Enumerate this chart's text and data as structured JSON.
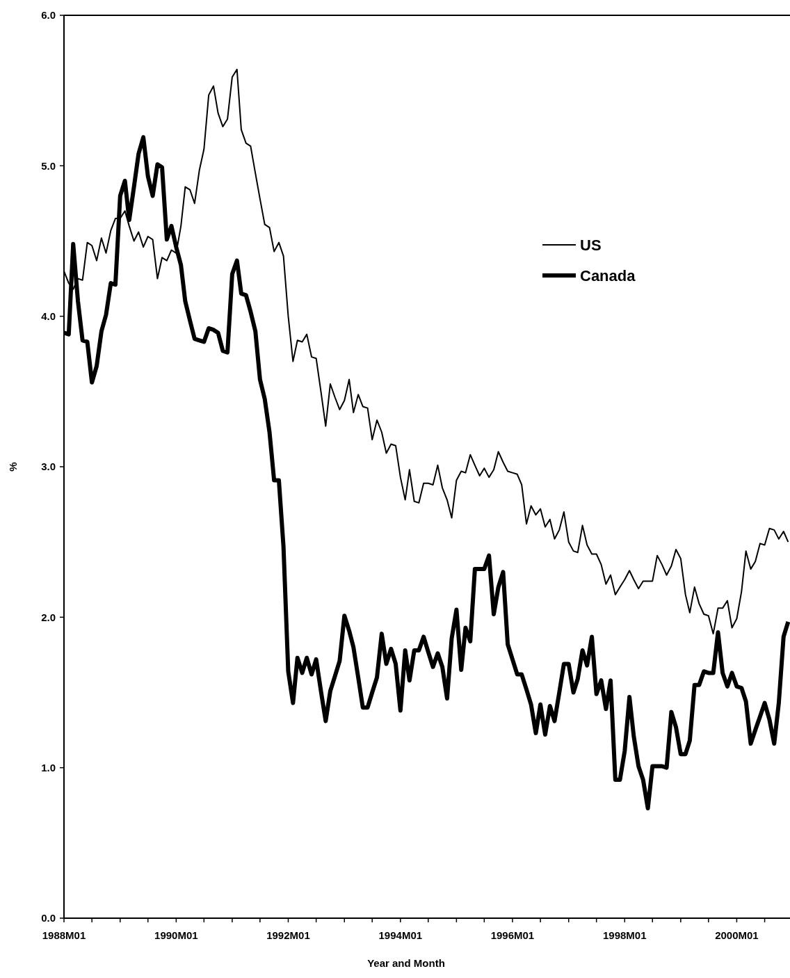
{
  "chart_data": {
    "type": "line",
    "xlabel": "Year and Month",
    "ylabel": "%",
    "x": [
      "1988-01",
      "1988-02",
      "1988-03",
      "1988-04",
      "1988-05",
      "1988-06",
      "1988-07",
      "1988-08",
      "1988-09",
      "1988-10",
      "1988-11",
      "1988-12",
      "1989-01",
      "1989-02",
      "1989-03",
      "1989-04",
      "1989-05",
      "1989-06",
      "1989-07",
      "1989-08",
      "1989-09",
      "1989-10",
      "1989-11",
      "1989-12",
      "1990-01",
      "1990-02",
      "1990-03",
      "1990-04",
      "1990-05",
      "1990-06",
      "1990-07",
      "1990-08",
      "1990-09",
      "1990-10",
      "1990-11",
      "1990-12",
      "1991-01",
      "1991-02",
      "1991-03",
      "1991-04",
      "1991-05",
      "1991-06",
      "1991-07",
      "1991-08",
      "1991-09",
      "1991-10",
      "1991-11",
      "1991-12",
      "1992-01",
      "1992-02",
      "1992-03",
      "1992-04",
      "1992-05",
      "1992-06",
      "1992-07",
      "1992-08",
      "1992-09",
      "1992-10",
      "1992-11",
      "1992-12",
      "1993-01",
      "1993-02",
      "1993-03",
      "1993-04",
      "1993-05",
      "1993-06",
      "1993-07",
      "1993-08",
      "1993-09",
      "1993-10",
      "1993-11",
      "1993-12",
      "1994-01",
      "1994-02",
      "1994-03",
      "1994-04",
      "1994-05",
      "1994-06",
      "1994-07",
      "1994-08",
      "1994-09",
      "1994-10",
      "1994-11",
      "1994-12",
      "1995-01",
      "1995-02",
      "1995-03",
      "1995-04",
      "1995-05",
      "1995-06",
      "1995-07",
      "1995-08",
      "1995-09",
      "1995-10",
      "1995-11",
      "1995-12",
      "1996-01",
      "1996-02",
      "1996-03",
      "1996-04",
      "1996-05",
      "1996-06",
      "1996-07",
      "1996-08",
      "1996-09",
      "1996-10",
      "1996-11",
      "1996-12",
      "1997-01",
      "1997-02",
      "1997-03",
      "1997-04",
      "1997-05",
      "1997-06",
      "1997-07",
      "1997-08",
      "1997-09",
      "1997-10",
      "1997-11",
      "1997-12",
      "1998-01",
      "1998-02",
      "1998-03",
      "1998-04",
      "1998-05",
      "1998-06",
      "1998-07",
      "1998-08",
      "1998-09",
      "1998-10",
      "1998-11",
      "1998-12",
      "1999-01",
      "1999-02",
      "1999-03",
      "1999-04",
      "1999-05",
      "1999-06",
      "1999-07",
      "1999-08",
      "1999-09",
      "1999-10",
      "1999-11",
      "1999-12",
      "2000-01",
      "2000-02",
      "2000-03",
      "2000-04",
      "2000-05",
      "2000-06",
      "2000-07",
      "2000-08",
      "2000-09",
      "2000-10",
      "2000-11",
      "2000-12"
    ],
    "series": [
      {
        "name": "US",
        "color": "#000000",
        "values": [
          4.3,
          4.22,
          4.18,
          4.25,
          4.24,
          4.49,
          4.47,
          4.37,
          4.52,
          4.42,
          4.57,
          4.65,
          4.65,
          4.7,
          4.6,
          4.5,
          4.56,
          4.46,
          4.53,
          4.51,
          4.25,
          4.39,
          4.37,
          4.44,
          4.42,
          4.6,
          4.86,
          4.84,
          4.75,
          4.97,
          5.11,
          5.47,
          5.53,
          5.35,
          5.26,
          5.31,
          5.59,
          5.64,
          5.24,
          5.15,
          5.13,
          4.95,
          4.78,
          4.61,
          4.59,
          4.43,
          4.49,
          4.4,
          4.0,
          3.7,
          3.84,
          3.83,
          3.88,
          3.73,
          3.72,
          3.5,
          3.27,
          3.55,
          3.46,
          3.38,
          3.44,
          3.58,
          3.36,
          3.48,
          3.4,
          3.39,
          3.18,
          3.31,
          3.23,
          3.09,
          3.15,
          3.14,
          2.93,
          2.78,
          2.98,
          2.77,
          2.76,
          2.89,
          2.89,
          2.88,
          3.01,
          2.86,
          2.78,
          2.66,
          2.91,
          2.97,
          2.96,
          3.08,
          3.01,
          2.94,
          2.99,
          2.93,
          2.98,
          3.1,
          3.03,
          2.97,
          2.96,
          2.95,
          2.88,
          2.62,
          2.74,
          2.68,
          2.72,
          2.6,
          2.65,
          2.52,
          2.58,
          2.7,
          2.5,
          2.44,
          2.43,
          2.61,
          2.48,
          2.42,
          2.42,
          2.35,
          2.22,
          2.28,
          2.15,
          2.2,
          2.25,
          2.31,
          2.25,
          2.19,
          2.24,
          2.24,
          2.24,
          2.41,
          2.35,
          2.28,
          2.34,
          2.45,
          2.39,
          2.15,
          2.03,
          2.2,
          2.09,
          2.02,
          2.01,
          1.89,
          2.06,
          2.06,
          2.11,
          1.93,
          1.99,
          2.17,
          2.44,
          2.32,
          2.37,
          2.49,
          2.48,
          2.59,
          2.58,
          2.52,
          2.57,
          2.5
        ]
      },
      {
        "name": "Canada",
        "color": "#000000",
        "values": [
          3.89,
          3.88,
          4.48,
          4.1,
          3.84,
          3.83,
          3.56,
          3.67,
          3.9,
          4.01,
          4.22,
          4.21,
          4.8,
          4.9,
          4.64,
          4.86,
          5.08,
          5.19,
          4.93,
          4.8,
          5.01,
          4.99,
          4.51,
          4.6,
          4.46,
          4.34,
          4.1,
          3.97,
          3.85,
          3.84,
          3.83,
          3.92,
          3.91,
          3.89,
          3.77,
          3.76,
          4.28,
          4.37,
          4.15,
          4.14,
          4.03,
          3.9,
          3.58,
          3.45,
          3.23,
          2.91,
          2.91,
          2.47,
          1.64,
          1.43,
          1.73,
          1.63,
          1.73,
          1.62,
          1.72,
          1.51,
          1.31,
          1.51,
          1.61,
          1.71,
          2.01,
          1.91,
          1.8,
          1.6,
          1.4,
          1.4,
          1.5,
          1.6,
          1.89,
          1.69,
          1.79,
          1.69,
          1.38,
          1.78,
          1.58,
          1.78,
          1.78,
          1.87,
          1.77,
          1.67,
          1.76,
          1.67,
          1.46,
          1.86,
          2.05,
          1.65,
          1.93,
          1.84,
          2.32,
          2.32,
          2.32,
          2.41,
          2.02,
          2.2,
          2.3,
          1.82,
          1.72,
          1.62,
          1.62,
          1.52,
          1.42,
          1.23,
          1.42,
          1.22,
          1.41,
          1.31,
          1.5,
          1.69,
          1.69,
          1.5,
          1.59,
          1.78,
          1.68,
          1.87,
          1.49,
          1.58,
          1.39,
          1.58,
          0.92,
          0.92,
          1.11,
          1.47,
          1.21,
          1.01,
          0.92,
          0.73,
          1.01,
          1.01,
          1.01,
          1.0,
          1.37,
          1.27,
          1.09,
          1.09,
          1.18,
          1.55,
          1.55,
          1.64,
          1.63,
          1.63,
          1.9,
          1.63,
          1.54,
          1.63,
          1.54,
          1.53,
          1.44,
          1.16,
          1.25,
          1.34,
          1.43,
          1.32,
          1.16,
          1.43,
          1.87,
          1.97
        ]
      }
    ],
    "xlim": [
      "1988-01-01",
      "2000-12-13"
    ],
    "xticks": [
      {
        "value": "1988-01",
        "label": "1988M01"
      },
      {
        "value": "1988-07",
        "label": null
      },
      {
        "value": "1989-01",
        "label": null
      },
      {
        "value": "1989-07",
        "label": null
      },
      {
        "value": "1990-01",
        "label": "1990M01"
      },
      {
        "value": "1990-07",
        "label": null
      },
      {
        "value": "1991-01",
        "label": null
      },
      {
        "value": "1991-07",
        "label": null
      },
      {
        "value": "1992-01",
        "label": "1992M01"
      },
      {
        "value": "1992-07",
        "label": null
      },
      {
        "value": "1993-01",
        "label": null
      },
      {
        "value": "1993-07",
        "label": null
      },
      {
        "value": "1994-01",
        "label": "1994M01"
      },
      {
        "value": "1994-07",
        "label": null
      },
      {
        "value": "1995-01",
        "label": null
      },
      {
        "value": "1995-07",
        "label": null
      },
      {
        "value": "1996-01",
        "label": "1996M01"
      },
      {
        "value": "1996-07",
        "label": null
      },
      {
        "value": "1997-01",
        "label": null
      },
      {
        "value": "1997-07",
        "label": null
      },
      {
        "value": "1998-01",
        "label": "1998M01"
      },
      {
        "value": "1998-07",
        "label": null
      },
      {
        "value": "1999-01",
        "label": null
      },
      {
        "value": "1999-07",
        "label": null
      },
      {
        "value": "2000-01",
        "label": "2000M01"
      },
      {
        "value": "2000-07",
        "label": null
      }
    ],
    "ylim": [
      0,
      6
    ],
    "yticks": [
      {
        "value": 0,
        "label": "0.0"
      },
      {
        "value": 1,
        "label": "1.0"
      },
      {
        "value": 2,
        "label": "2.0"
      },
      {
        "value": 3,
        "label": "3.0"
      },
      {
        "value": 4,
        "label": "4.0"
      },
      {
        "value": 5,
        "label": "5.0"
      },
      {
        "value": 6,
        "label": "6.0"
      }
    ],
    "legend": "top right",
    "marker": "none",
    "line_style": "solid",
    "grid": false
  }
}
